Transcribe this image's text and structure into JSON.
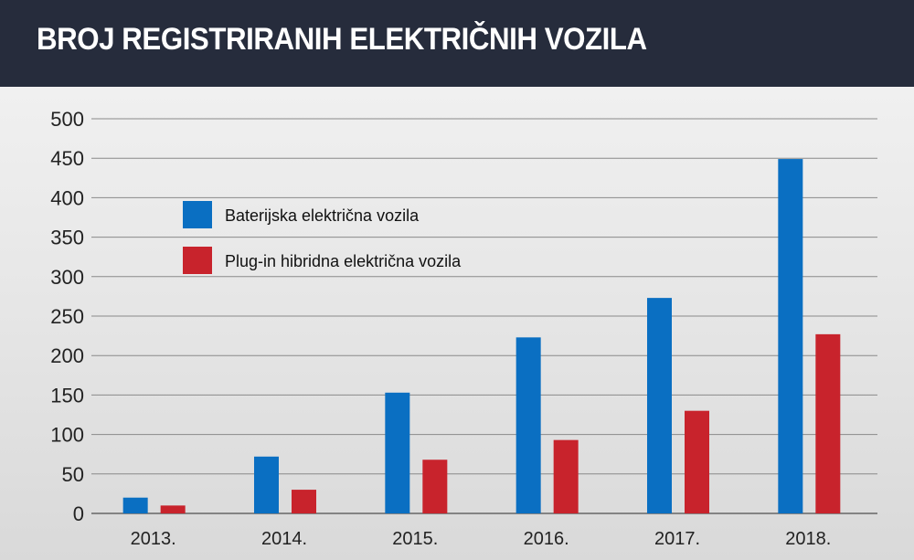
{
  "header": {
    "title": "BROJ REGISTRIRANIH ELEKTRIČNIH VOZILA"
  },
  "chart_data": {
    "type": "bar",
    "title": "BROJ REGISTRIRANIH ELEKTRIČNIH VOZILA",
    "categories": [
      "2013.",
      "2014.",
      "2015.",
      "2016.",
      "2017.",
      "2018."
    ],
    "series": [
      {
        "name": "Baterijska električna vozila",
        "color": "#0a6fc2",
        "values": [
          20,
          72,
          153,
          223,
          273,
          449
        ]
      },
      {
        "name": "Plug-in hibridna električna vozila",
        "color": "#c8232c",
        "values": [
          10,
          30,
          68,
          93,
          130,
          227
        ]
      }
    ],
    "yticks": [
      0,
      50,
      100,
      150,
      200,
      250,
      300,
      350,
      400,
      450,
      500
    ],
    "ylim": [
      0,
      500
    ],
    "grid": true,
    "legend": "top-left"
  }
}
